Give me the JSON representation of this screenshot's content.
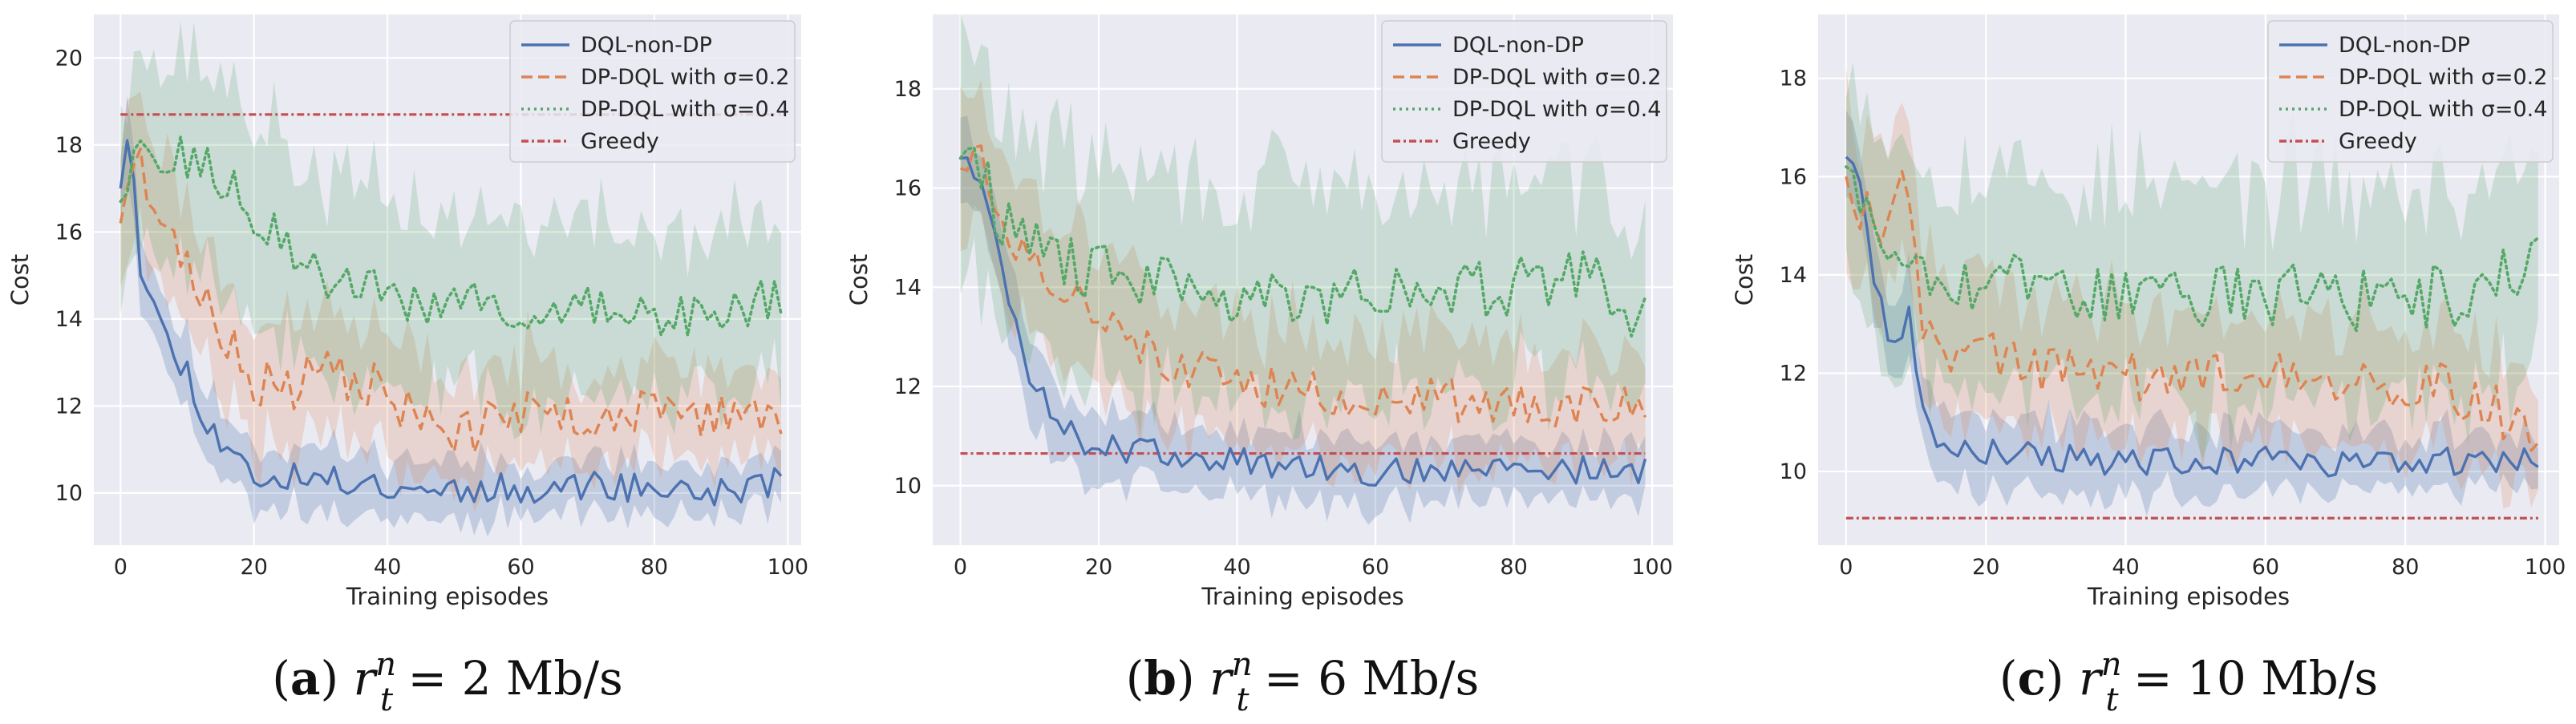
{
  "colors": {
    "dql_non_dp": "#4c72b0",
    "dp_02": "#dd8452",
    "dp_04": "#55a868",
    "greedy": "#c44e52",
    "panel_bg": "#eaeaf2",
    "grid": "#ffffff"
  },
  "chart_data": [
    {
      "type": "line",
      "caption": {
        "letter": "a",
        "rate": "2",
        "unit": "Mb/s"
      },
      "xlabel": "Training episodes",
      "ylabel": "Cost",
      "xlim": [
        -4,
        102
      ],
      "ylim": [
        8.8,
        21
      ],
      "xticks": [
        0,
        20,
        40,
        60,
        80,
        100
      ],
      "yticks": [
        10,
        12,
        14,
        16,
        18,
        20
      ],
      "grid": true,
      "legend_position": "top-right",
      "series": [
        {
          "name": "DQL-non-DP",
          "style": "solid",
          "start": 17.0,
          "shape": [
            [
              0,
              17.0
            ],
            [
              1,
              18.4
            ],
            [
              2,
              17.5
            ],
            [
              3,
              15.2
            ],
            [
              5,
              14.3
            ],
            [
              7,
              13.5
            ],
            [
              10,
              12.8
            ],
            [
              13,
              11.6
            ],
            [
              16,
              11.0
            ],
            [
              20,
              10.4
            ],
            [
              30,
              10.3
            ],
            [
              40,
              10.2
            ],
            [
              50,
              10.1
            ],
            [
              60,
              10.1
            ],
            [
              70,
              10.2
            ],
            [
              80,
              10.1
            ],
            [
              90,
              10.0
            ],
            [
              99,
              10.3
            ]
          ],
          "noise": 0.35,
          "band": [
            0.8,
            0.5
          ],
          "seed": 11
        },
        {
          "name": "DP-DQL with σ=0.2",
          "style": "dashed",
          "start": 16.2,
          "shape": [
            [
              0,
              16.2
            ],
            [
              2,
              17.8
            ],
            [
              5,
              16.8
            ],
            [
              8,
              15.8
            ],
            [
              12,
              14.5
            ],
            [
              16,
              13.5
            ],
            [
              20,
              12.6
            ],
            [
              25,
              12.3
            ],
            [
              30,
              12.8
            ],
            [
              38,
              12.5
            ],
            [
              45,
              11.6
            ],
            [
              52,
              11.4
            ],
            [
              60,
              11.8
            ],
            [
              70,
              11.8
            ],
            [
              80,
              11.8
            ],
            [
              90,
              11.8
            ],
            [
              99,
              11.8
            ]
          ],
          "noise": 0.55,
          "band": [
            1.6,
            1.0
          ],
          "seed": 23
        },
        {
          "name": "DP-DQL with σ=0.4",
          "style": "dotted",
          "start": 16.7,
          "shape": [
            [
              0,
              16.7
            ],
            [
              2,
              18.1
            ],
            [
              5,
              17.4
            ],
            [
              10,
              17.7
            ],
            [
              15,
              17.2
            ],
            [
              20,
              16.4
            ],
            [
              25,
              15.6
            ],
            [
              30,
              15.0
            ],
            [
              35,
              14.8
            ],
            [
              40,
              14.5
            ],
            [
              50,
              14.3
            ],
            [
              60,
              14.2
            ],
            [
              70,
              14.2
            ],
            [
              80,
              14.1
            ],
            [
              90,
              14.2
            ],
            [
              99,
              14.5
            ]
          ],
          "noise": 0.55,
          "band": [
            2.4,
            1.8
          ],
          "seed": 37
        },
        {
          "name": "Greedy",
          "style": "dashdot",
          "constant": 18.7
        }
      ]
    },
    {
      "type": "line",
      "caption": {
        "letter": "b",
        "rate": "6",
        "unit": "Mb/s"
      },
      "xlabel": "Training episodes",
      "ylabel": "Cost",
      "xlim": [
        -4,
        103
      ],
      "ylim": [
        8.8,
        19.5
      ],
      "xticks": [
        0,
        20,
        40,
        60,
        80,
        100
      ],
      "yticks": [
        10,
        12,
        14,
        16,
        18
      ],
      "grid": true,
      "legend_position": "top-right",
      "series": [
        {
          "name": "DQL-non-DP",
          "style": "solid",
          "start": 16.6,
          "shape": [
            [
              0,
              16.6
            ],
            [
              2,
              16.2
            ],
            [
              4,
              15.6
            ],
            [
              6,
              14.2
            ],
            [
              8,
              13.3
            ],
            [
              10,
              12.2
            ],
            [
              13,
              11.5
            ],
            [
              17,
              11.0
            ],
            [
              20,
              10.8
            ],
            [
              30,
              10.6
            ],
            [
              40,
              10.5
            ],
            [
              50,
              10.4
            ],
            [
              60,
              10.3
            ],
            [
              70,
              10.3
            ],
            [
              80,
              10.3
            ],
            [
              90,
              10.3
            ],
            [
              99,
              10.3
            ]
          ],
          "noise": 0.3,
          "band": [
            0.8,
            0.55
          ],
          "seed": 5
        },
        {
          "name": "DP-DQL with σ=0.2",
          "style": "dashed",
          "start": 16.4,
          "shape": [
            [
              0,
              16.4
            ],
            [
              3,
              16.8
            ],
            [
              5,
              15.6
            ],
            [
              8,
              15.0
            ],
            [
              12,
              14.4
            ],
            [
              16,
              13.9
            ],
            [
              20,
              13.6
            ],
            [
              25,
              13.0
            ],
            [
              30,
              12.5
            ],
            [
              40,
              12.1
            ],
            [
              50,
              11.9
            ],
            [
              60,
              11.8
            ],
            [
              70,
              11.7
            ],
            [
              80,
              11.7
            ],
            [
              90,
              11.6
            ],
            [
              99,
              11.5
            ]
          ],
          "noise": 0.45,
          "band": [
            1.4,
            1.1
          ],
          "seed": 17
        },
        {
          "name": "DP-DQL with σ=0.4",
          "style": "dotted",
          "start": 16.6,
          "shape": [
            [
              0,
              16.6
            ],
            [
              3,
              16.3
            ],
            [
              6,
              15.4
            ],
            [
              10,
              14.8
            ],
            [
              15,
              14.5
            ],
            [
              20,
              14.3
            ],
            [
              30,
              14.0
            ],
            [
              40,
              13.9
            ],
            [
              50,
              13.8
            ],
            [
              60,
              13.9
            ],
            [
              70,
              13.9
            ],
            [
              80,
              14.0
            ],
            [
              90,
              14.3
            ],
            [
              99,
              13.4
            ]
          ],
          "noise": 0.6,
          "band": [
            2.2,
            2.0
          ],
          "seed": 29
        },
        {
          "name": "Greedy",
          "style": "dashdot",
          "constant": 10.65
        }
      ]
    },
    {
      "type": "line",
      "caption": {
        "letter": "c",
        "rate": "10",
        "unit": "Mb/s"
      },
      "xlabel": "Training episodes",
      "ylabel": "Cost",
      "xlim": [
        -4,
        102
      ],
      "ylim": [
        8.5,
        19.3
      ],
      "xticks": [
        0,
        20,
        40,
        60,
        80,
        100
      ],
      "yticks": [
        10,
        12,
        14,
        16,
        18
      ],
      "grid": true,
      "legend_position": "top-right",
      "series": [
        {
          "name": "DQL-non-DP",
          "style": "solid",
          "start": 16.4,
          "shape": [
            [
              0,
              16.4
            ],
            [
              2,
              15.8
            ],
            [
              4,
              13.8
            ],
            [
              6,
              12.8
            ],
            [
              8,
              12.8
            ],
            [
              9,
              13.1
            ],
            [
              11,
              11.5
            ],
            [
              13,
              10.8
            ],
            [
              16,
              10.5
            ],
            [
              20,
              10.4
            ],
            [
              30,
              10.3
            ],
            [
              40,
              10.2
            ],
            [
              50,
              10.2
            ],
            [
              60,
              10.2
            ],
            [
              70,
              10.2
            ],
            [
              80,
              10.2
            ],
            [
              90,
              10.2
            ],
            [
              99,
              10.2
            ]
          ],
          "noise": 0.3,
          "band": [
            0.8,
            0.5
          ],
          "seed": 3
        },
        {
          "name": "DP-DQL with σ=0.2",
          "style": "dashed",
          "start": 16.0,
          "shape": [
            [
              0,
              16.0
            ],
            [
              3,
              15.2
            ],
            [
              5,
              14.5
            ],
            [
              7,
              15.5
            ],
            [
              9,
              16.0
            ],
            [
              11,
              13.0
            ],
            [
              14,
              12.4
            ],
            [
              18,
              12.6
            ],
            [
              22,
              12.4
            ],
            [
              30,
              12.1
            ],
            [
              40,
              12.0
            ],
            [
              50,
              11.8
            ],
            [
              60,
              11.9
            ],
            [
              70,
              11.8
            ],
            [
              80,
              11.8
            ],
            [
              90,
              11.5
            ],
            [
              99,
              10.8
            ]
          ],
          "noise": 0.55,
          "band": [
            1.5,
            1.2
          ],
          "seed": 41
        },
        {
          "name": "DP-DQL with σ=0.4",
          "style": "dotted",
          "start": 16.2,
          "shape": [
            [
              0,
              16.2
            ],
            [
              3,
              15.4
            ],
            [
              6,
              14.7
            ],
            [
              10,
              14.4
            ],
            [
              15,
              14.0
            ],
            [
              20,
              13.8
            ],
            [
              30,
              13.7
            ],
            [
              40,
              13.6
            ],
            [
              50,
              13.5
            ],
            [
              60,
              13.6
            ],
            [
              70,
              13.5
            ],
            [
              80,
              13.5
            ],
            [
              90,
              13.6
            ],
            [
              99,
              14.4
            ]
          ],
          "noise": 0.65,
          "band": [
            2.2,
            2.2
          ],
          "seed": 53
        },
        {
          "name": "Greedy",
          "style": "dashdot",
          "constant": 9.05
        }
      ]
    }
  ]
}
